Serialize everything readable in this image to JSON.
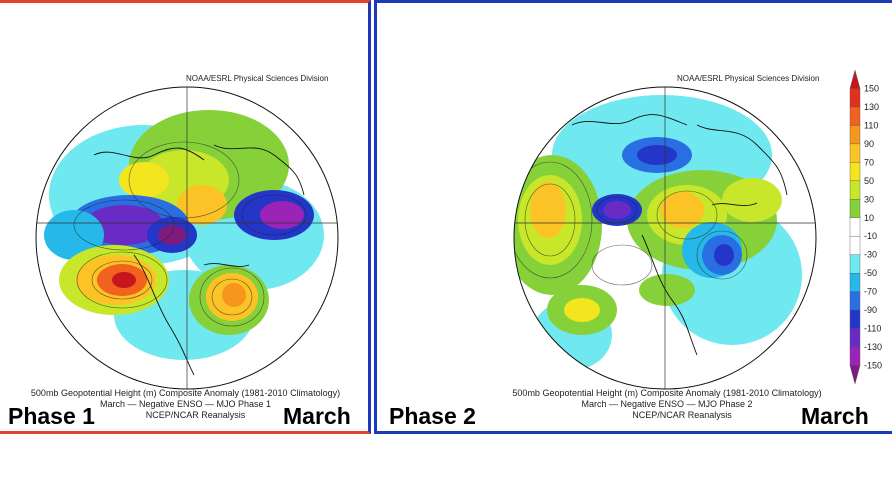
{
  "colors": {
    "left_frame": "#e2452e",
    "right_frame": "#1c39b7"
  },
  "legend": {
    "ticks": [
      "150",
      "130",
      "110",
      "90",
      "70",
      "50",
      "30",
      "10",
      "-10",
      "-30",
      "-50",
      "-70",
      "-90",
      "-110",
      "-130",
      "-150"
    ],
    "band_colors": [
      "#c4161c",
      "#e0301e",
      "#f0621e",
      "#f7961f",
      "#fbc325",
      "#f4e61e",
      "#c8e62a",
      "#86d13a",
      "#ffffff",
      "#ffffff",
      "#6fe8f0",
      "#27b8ea",
      "#2a6fe2",
      "#2436c8",
      "#6a2bc4",
      "#9c23b8",
      "#7d1b7e"
    ]
  },
  "panels": [
    {
      "credit": "NOAA/ESRL Physical Sciences Division",
      "caption_line1": "500mb Geopotential Height (m) Composite Anomaly (1981-2010 Climatology)",
      "caption_line2": "March — Negative ENSO — MJO Phase 1",
      "caption_line3": "NCEP/NCAR Reanalysis",
      "phase_label": "Phase 1",
      "month_label": "March"
    },
    {
      "credit": "NOAA/ESRL Physical Sciences Division",
      "caption_line1": "500mb Geopotential Height (m) Composite Anomaly (1981-2010 Climatology)",
      "caption_line2": "March — Negative ENSO — MJO Phase 2",
      "caption_line3": "NCEP/NCAR Reanalysis",
      "phase_label": "Phase 2",
      "month_label": "March"
    }
  ]
}
